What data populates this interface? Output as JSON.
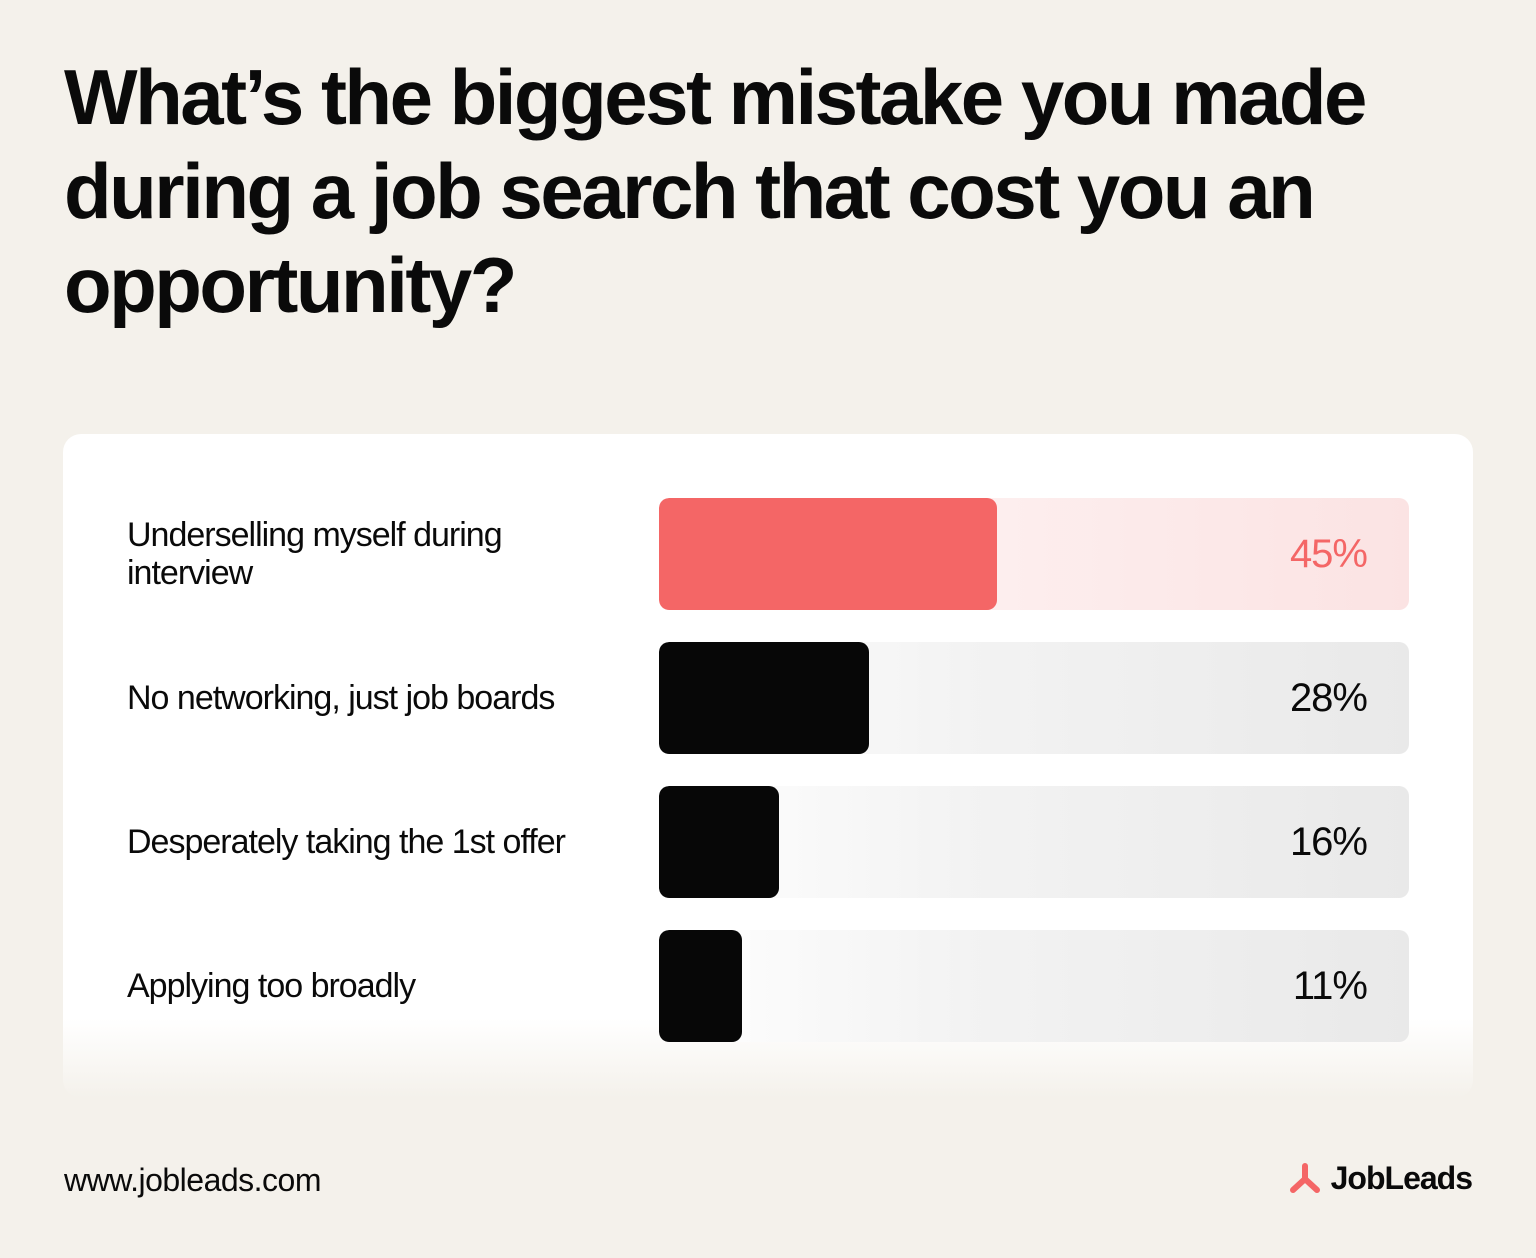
{
  "title": "What’s the biggest mistake you made during a job search that cost you an opportunity?",
  "footer": {
    "url": "www.jobleads.com",
    "brand": "JobLeads"
  },
  "colors": {
    "accent": "#f46666",
    "bar": "#070707",
    "background": "#f4f1eb"
  },
  "chart_data": {
    "type": "bar",
    "orientation": "horizontal",
    "categories": [
      "Underselling myself during interview",
      "No networking, just job boards",
      "Desperately taking the 1st offer",
      "Applying too broadly"
    ],
    "values": [
      45,
      28,
      16,
      11
    ],
    "value_labels": [
      "45%",
      "28%",
      "16%",
      "11%"
    ],
    "highlighted_index": 0,
    "xlim": [
      0,
      100
    ],
    "grid": false,
    "legend": "none"
  }
}
